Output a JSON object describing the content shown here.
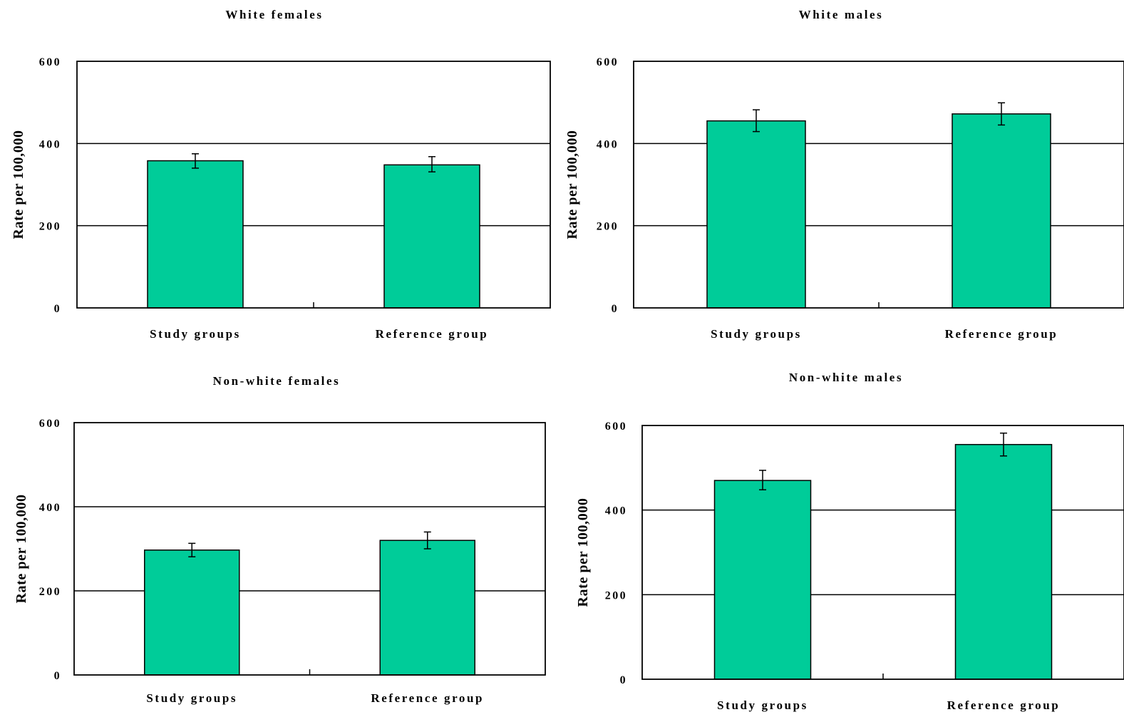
{
  "chart_data": [
    {
      "type": "bar",
      "title": "White females",
      "ylabel": "Rate per 100,000",
      "xlabel": "",
      "categories": [
        "Study groups",
        "Reference group"
      ],
      "values": [
        358,
        348
      ],
      "error": [
        [
          340,
          375
        ],
        [
          331,
          368
        ]
      ],
      "ylim": [
        0,
        600
      ],
      "yticks": [
        "0",
        "200",
        "400",
        "600"
      ],
      "grid": true,
      "bar_color": "#00CC99"
    },
    {
      "type": "bar",
      "title": "White males",
      "ylabel": "Rate per 100,000",
      "xlabel": "",
      "categories": [
        "Study groups",
        "Reference group"
      ],
      "values": [
        455,
        472
      ],
      "error": [
        [
          429,
          482
        ],
        [
          445,
          499
        ]
      ],
      "ylim": [
        0,
        600
      ],
      "yticks": [
        "0",
        "200",
        "400",
        "600"
      ],
      "grid": true,
      "bar_color": "#00CC99"
    },
    {
      "type": "bar",
      "title": "Non-white females",
      "ylabel": "Rate per 100,000",
      "xlabel": "",
      "categories": [
        "Study groups",
        "Reference group"
      ],
      "values": [
        297,
        320
      ],
      "error": [
        [
          281,
          313
        ],
        [
          300,
          340
        ]
      ],
      "ylim": [
        0,
        600
      ],
      "yticks": [
        "0",
        "200",
        "400",
        "600"
      ],
      "grid": true,
      "bar_color": "#00CC99"
    },
    {
      "type": "bar",
      "title": "Non-white males",
      "ylabel": "Rate per 100,000",
      "xlabel": "",
      "categories": [
        "Study groups",
        "Reference group"
      ],
      "values": [
        470,
        555
      ],
      "error": [
        [
          448,
          494
        ],
        [
          528,
          582
        ]
      ],
      "ylim": [
        0,
        600
      ],
      "yticks": [
        "0",
        "200",
        "400",
        "600"
      ],
      "grid": true,
      "bar_color": "#00CC99"
    }
  ]
}
